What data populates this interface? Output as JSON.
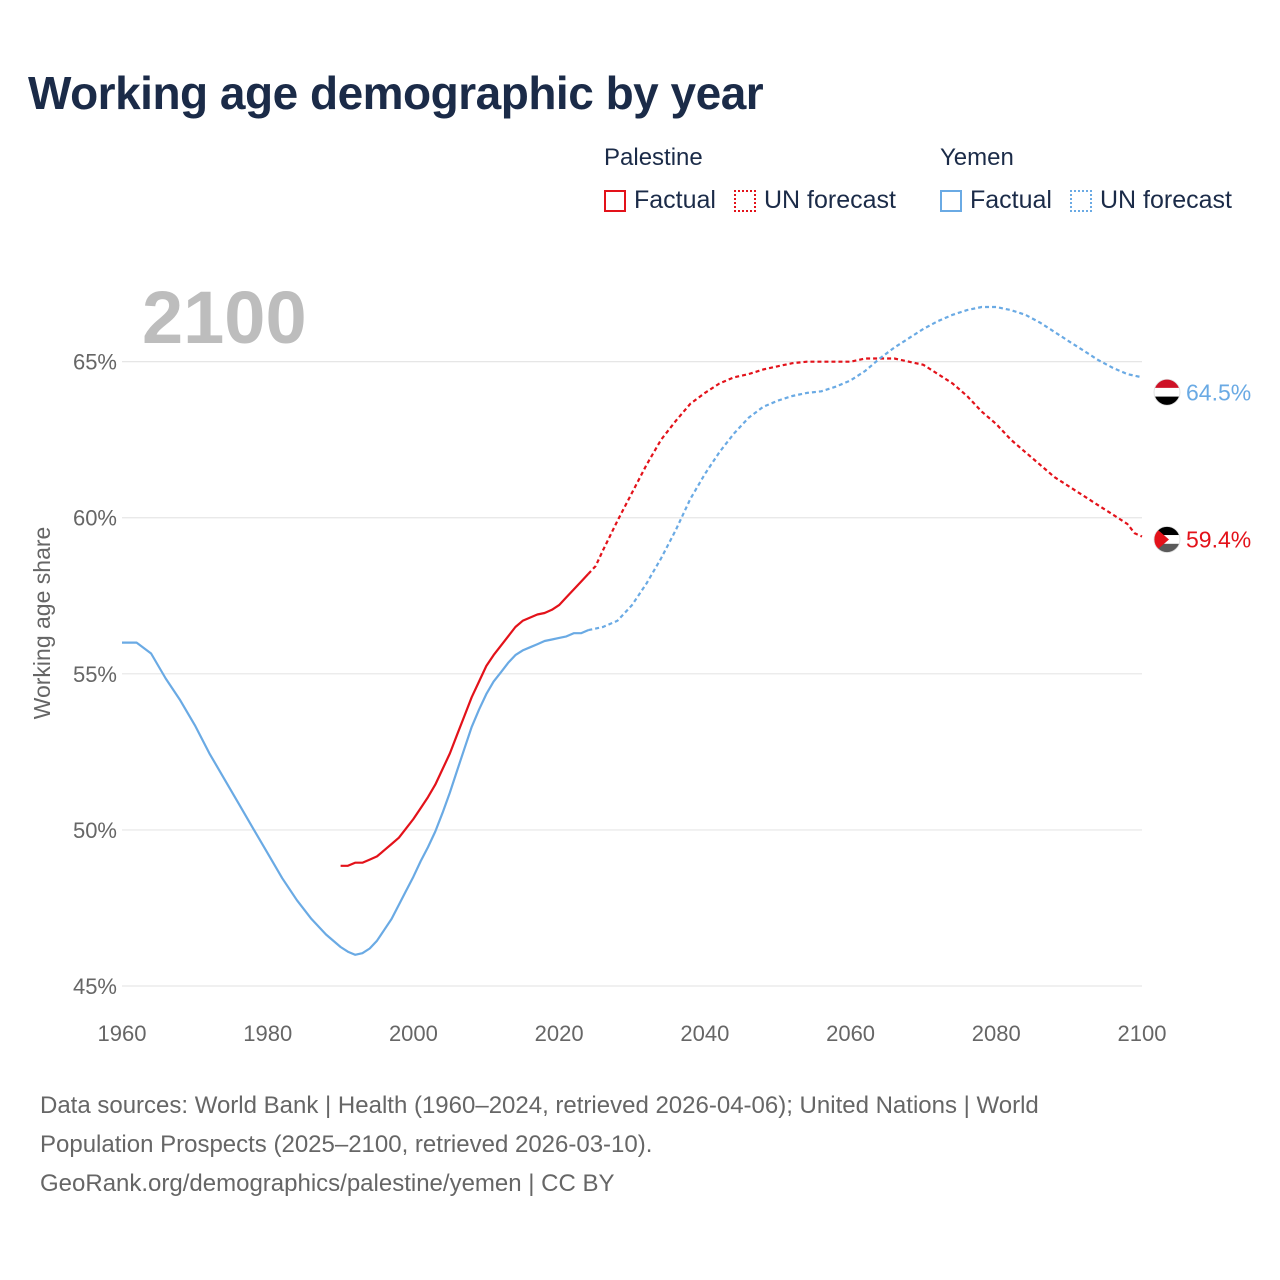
{
  "title": "Working age demographic by year",
  "legend": {
    "groups": [
      {
        "name": "Palestine",
        "factual_label": "Factual",
        "forecast_label": "UN forecast"
      },
      {
        "name": "Yemen",
        "factual_label": "Factual",
        "forecast_label": "UN forecast"
      }
    ]
  },
  "colors": {
    "palestine": "#e3121a",
    "yemen": "#6aaae4",
    "grid": "#e6e6e6",
    "year_label": "#bdbdbd",
    "axis_text": "#666666"
  },
  "chart_data": {
    "type": "line",
    "title": "Working age demographic by year",
    "xlabel": "",
    "ylabel": "Working age share",
    "xlim": [
      1960,
      2100
    ],
    "ylim": [
      45,
      68
    ],
    "x_ticks": [
      1960,
      1980,
      2000,
      2020,
      2040,
      2060,
      2080,
      2100
    ],
    "x_tick_labels": [
      "1960",
      "1980",
      "2000",
      "2020",
      "2040",
      "2060",
      "2080",
      "2100"
    ],
    "y_ticks": [
      45,
      50,
      55,
      60,
      65
    ],
    "y_tick_labels": [
      "45%",
      "50%",
      "55%",
      "60%",
      "65%"
    ],
    "current_year_label": "2100",
    "factual_end_year": 2024,
    "series": [
      {
        "name": "Palestine",
        "color": "#e3121a",
        "end_label": "59.4%",
        "flag": "palestine-flag",
        "points": [
          [
            1990,
            48.85
          ],
          [
            1991,
            48.85
          ],
          [
            1992,
            48.95
          ],
          [
            1993,
            48.95
          ],
          [
            1994,
            49.05
          ],
          [
            1995,
            49.15
          ],
          [
            1996,
            49.35
          ],
          [
            1997,
            49.55
          ],
          [
            1998,
            49.75
          ],
          [
            1999,
            50.05
          ],
          [
            2000,
            50.35
          ],
          [
            2001,
            50.7
          ],
          [
            2002,
            51.05
          ],
          [
            2003,
            51.45
          ],
          [
            2004,
            51.95
          ],
          [
            2005,
            52.45
          ],
          [
            2006,
            53.05
          ],
          [
            2007,
            53.65
          ],
          [
            2008,
            54.25
          ],
          [
            2009,
            54.75
          ],
          [
            2010,
            55.25
          ],
          [
            2011,
            55.6
          ],
          [
            2012,
            55.9
          ],
          [
            2013,
            56.2
          ],
          [
            2014,
            56.5
          ],
          [
            2015,
            56.7
          ],
          [
            2016,
            56.8
          ],
          [
            2017,
            56.9
          ],
          [
            2018,
            56.95
          ],
          [
            2019,
            57.05
          ],
          [
            2020,
            57.2
          ],
          [
            2021,
            57.45
          ],
          [
            2022,
            57.7
          ],
          [
            2023,
            57.95
          ],
          [
            2024,
            58.2
          ],
          [
            2025,
            58.45
          ],
          [
            2026,
            58.95
          ],
          [
            2028,
            59.9
          ],
          [
            2030,
            60.8
          ],
          [
            2032,
            61.7
          ],
          [
            2034,
            62.5
          ],
          [
            2036,
            63.1
          ],
          [
            2038,
            63.65
          ],
          [
            2040,
            64.0
          ],
          [
            2042,
            64.3
          ],
          [
            2044,
            64.5
          ],
          [
            2046,
            64.6
          ],
          [
            2048,
            64.75
          ],
          [
            2050,
            64.85
          ],
          [
            2052,
            64.95
          ],
          [
            2054,
            65.0
          ],
          [
            2056,
            65.0
          ],
          [
            2058,
            65.0
          ],
          [
            2060,
            65.0
          ],
          [
            2062,
            65.1
          ],
          [
            2064,
            65.1
          ],
          [
            2066,
            65.1
          ],
          [
            2068,
            65.0
          ],
          [
            2070,
            64.9
          ],
          [
            2072,
            64.6
          ],
          [
            2074,
            64.3
          ],
          [
            2076,
            63.9
          ],
          [
            2078,
            63.4
          ],
          [
            2080,
            63.0
          ],
          [
            2082,
            62.5
          ],
          [
            2084,
            62.1
          ],
          [
            2086,
            61.7
          ],
          [
            2088,
            61.3
          ],
          [
            2090,
            61.0
          ],
          [
            2092,
            60.7
          ],
          [
            2094,
            60.4
          ],
          [
            2096,
            60.1
          ],
          [
            2098,
            59.8
          ],
          [
            2099,
            59.5
          ],
          [
            2100,
            59.4
          ]
        ]
      },
      {
        "name": "Yemen",
        "color": "#6aaae4",
        "end_label": "64.5%",
        "flag": "yemen-flag",
        "points": [
          [
            1960,
            56.0
          ],
          [
            1962,
            56.0
          ],
          [
            1964,
            55.65
          ],
          [
            1966,
            54.85
          ],
          [
            1968,
            54.15
          ],
          [
            1970,
            53.35
          ],
          [
            1972,
            52.45
          ],
          [
            1974,
            51.65
          ],
          [
            1976,
            50.85
          ],
          [
            1978,
            50.05
          ],
          [
            1980,
            49.25
          ],
          [
            1982,
            48.45
          ],
          [
            1984,
            47.75
          ],
          [
            1986,
            47.15
          ],
          [
            1988,
            46.65
          ],
          [
            1990,
            46.25
          ],
          [
            1991,
            46.1
          ],
          [
            1992,
            46.0
          ],
          [
            1993,
            46.05
          ],
          [
            1994,
            46.2
          ],
          [
            1995,
            46.45
          ],
          [
            1996,
            46.8
          ],
          [
            1997,
            47.15
          ],
          [
            1998,
            47.6
          ],
          [
            1999,
            48.05
          ],
          [
            2000,
            48.5
          ],
          [
            2001,
            49.0
          ],
          [
            2002,
            49.45
          ],
          [
            2003,
            49.95
          ],
          [
            2004,
            50.55
          ],
          [
            2005,
            51.2
          ],
          [
            2006,
            51.9
          ],
          [
            2007,
            52.6
          ],
          [
            2008,
            53.3
          ],
          [
            2009,
            53.85
          ],
          [
            2010,
            54.35
          ],
          [
            2011,
            54.75
          ],
          [
            2012,
            55.05
          ],
          [
            2013,
            55.35
          ],
          [
            2014,
            55.6
          ],
          [
            2015,
            55.75
          ],
          [
            2016,
            55.85
          ],
          [
            2017,
            55.95
          ],
          [
            2018,
            56.05
          ],
          [
            2019,
            56.1
          ],
          [
            2020,
            56.15
          ],
          [
            2021,
            56.2
          ],
          [
            2022,
            56.3
          ],
          [
            2023,
            56.3
          ],
          [
            2024,
            56.4
          ],
          [
            2025,
            56.45
          ],
          [
            2026,
            56.5
          ],
          [
            2028,
            56.7
          ],
          [
            2030,
            57.2
          ],
          [
            2032,
            57.9
          ],
          [
            2034,
            58.7
          ],
          [
            2036,
            59.6
          ],
          [
            2038,
            60.6
          ],
          [
            2040,
            61.4
          ],
          [
            2042,
            62.1
          ],
          [
            2044,
            62.7
          ],
          [
            2046,
            63.2
          ],
          [
            2048,
            63.55
          ],
          [
            2050,
            63.75
          ],
          [
            2052,
            63.9
          ],
          [
            2054,
            64.0
          ],
          [
            2056,
            64.05
          ],
          [
            2058,
            64.2
          ],
          [
            2060,
            64.4
          ],
          [
            2062,
            64.7
          ],
          [
            2064,
            65.1
          ],
          [
            2066,
            65.45
          ],
          [
            2068,
            65.75
          ],
          [
            2070,
            66.05
          ],
          [
            2072,
            66.3
          ],
          [
            2074,
            66.5
          ],
          [
            2076,
            66.65
          ],
          [
            2078,
            66.75
          ],
          [
            2080,
            66.75
          ],
          [
            2082,
            66.65
          ],
          [
            2084,
            66.5
          ],
          [
            2086,
            66.25
          ],
          [
            2088,
            65.95
          ],
          [
            2090,
            65.65
          ],
          [
            2092,
            65.35
          ],
          [
            2094,
            65.05
          ],
          [
            2096,
            64.8
          ],
          [
            2098,
            64.6
          ],
          [
            2100,
            64.5
          ]
        ]
      }
    ]
  },
  "footer": {
    "line1": "Data sources: World Bank | Health (1960–2024, retrieved 2026-04-06); United Nations | World",
    "line2": "Population Prospects (2025–2100, retrieved 2026-03-10).",
    "line3": "GeoRank.org/demographics/palestine/yemen | CC BY"
  }
}
